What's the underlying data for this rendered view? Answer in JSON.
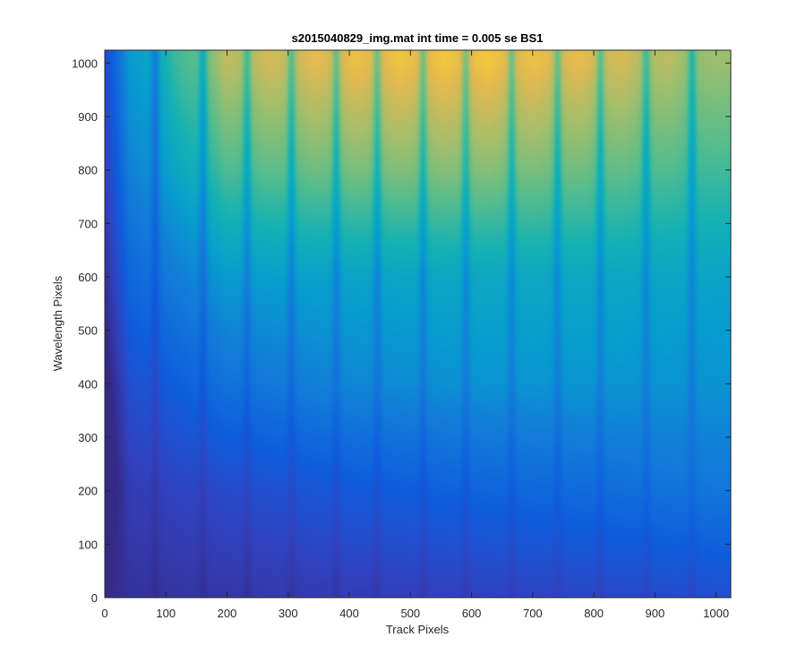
{
  "chart_data": {
    "type": "heatmap",
    "title": "s2015040829_img.mat int time = 0.005 se   BS1",
    "xlabel": "Track Pixels",
    "ylabel": "Wavelength Pixels",
    "xlim": [
      0,
      1024
    ],
    "ylim": [
      0,
      1024
    ],
    "xticks": [
      0,
      100,
      200,
      300,
      400,
      500,
      600,
      700,
      800,
      900,
      1000
    ],
    "yticks": [
      0,
      100,
      200,
      300,
      400,
      500,
      600,
      700,
      800,
      900,
      1000
    ],
    "colormap": "parula",
    "dark_track_columns": [
      82,
      160,
      232,
      305,
      378,
      445,
      520,
      590,
      665,
      740,
      810,
      885,
      960
    ],
    "intensity_grid_note_rows_are_wavelength_0_to_1024_cols_are_track_0_to_1024": null,
    "intensity_samples": {
      "wavelength": [
        0,
        200,
        400,
        600,
        800,
        1000
      ],
      "track": [
        0,
        200,
        400,
        600,
        800,
        1000
      ],
      "level": [
        [
          0.05,
          0.08,
          0.12,
          0.15,
          0.18,
          0.22
        ],
        [
          0.1,
          0.2,
          0.28,
          0.33,
          0.37,
          0.42
        ],
        [
          0.18,
          0.4,
          0.48,
          0.52,
          0.53,
          0.52
        ],
        [
          0.3,
          0.55,
          0.58,
          0.6,
          0.6,
          0.58
        ],
        [
          0.38,
          0.72,
          0.78,
          0.8,
          0.76,
          0.7
        ],
        [
          0.42,
          0.85,
          0.92,
          0.94,
          0.9,
          0.8
        ]
      ]
    }
  },
  "colors": {
    "background": "#ffffff",
    "axis": "#262626",
    "parula_low": "#352a87",
    "parula_mid": "#0ea2d1",
    "parula_high": "#f9c42d"
  }
}
